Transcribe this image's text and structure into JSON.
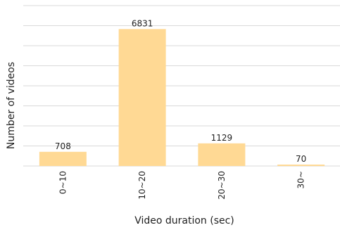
{
  "chart_data": {
    "type": "bar",
    "categories": [
      "0~10",
      "10~20",
      "20~30",
      "30~"
    ],
    "values": [
      708,
      6831,
      1129,
      70
    ],
    "title": "",
    "xlabel": "Video duration (sec)",
    "ylabel": "Number of videos",
    "ylim": [
      0,
      8000
    ],
    "grid": true,
    "bar_color": "#ffd994"
  }
}
